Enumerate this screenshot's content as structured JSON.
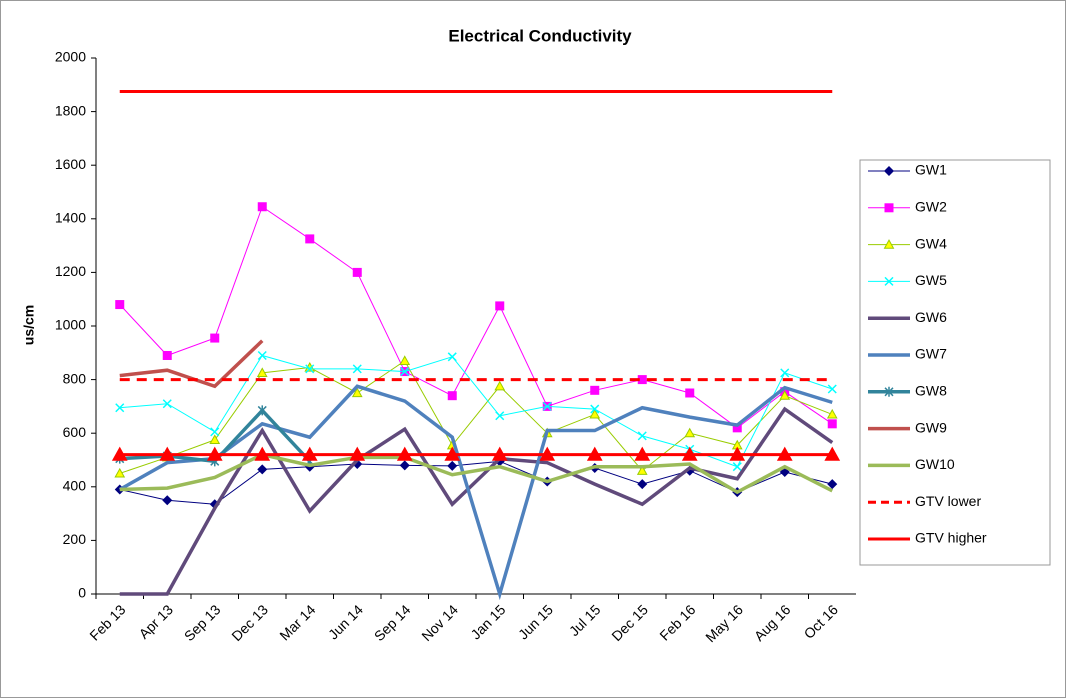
{
  "chart_data": {
    "type": "line",
    "title": "Electrical Conductivity",
    "y_label": "us/cm",
    "categories": [
      "Feb 13",
      "Apr 13",
      "Sep 13",
      "Dec 13",
      "Mar 14",
      "Jun 14",
      "Sep 14",
      "Nov 14",
      "Jan 15",
      "Jun 15",
      "Jul 15",
      "Dec 15",
      "Feb 16",
      "May 16",
      "Aug 16",
      "Oct 16"
    ],
    "ylim": [
      0,
      2000
    ],
    "yticks": [
      0,
      200,
      400,
      600,
      800,
      1000,
      1200,
      1400,
      1600,
      1800,
      2000
    ],
    "legend": "right",
    "series": [
      {
        "name": "GW1",
        "color": "#000080",
        "marker": "diamond",
        "line_width": 1,
        "values": [
          390,
          350,
          335,
          465,
          475,
          485,
          480,
          478,
          495,
          420,
          470,
          410,
          460,
          380,
          455,
          410
        ]
      },
      {
        "name": "GW2",
        "color": "#ff00ff",
        "marker": "square",
        "line_width": 1,
        "values": [
          1080,
          890,
          955,
          1445,
          1325,
          1200,
          830,
          740,
          1075,
          700,
          760,
          800,
          750,
          620,
          755,
          635
        ]
      },
      {
        "name": "GW4",
        "color": "#99cc00",
        "marker": "triangle",
        "marker_fill": "#ffff00",
        "line_width": 1,
        "values": [
          450,
          510,
          575,
          825,
          845,
          750,
          870,
          555,
          775,
          600,
          670,
          460,
          600,
          555,
          740,
          670
        ]
      },
      {
        "name": "GW5",
        "color": "#00ffff",
        "marker": "x",
        "line_width": 1,
        "values": [
          695,
          710,
          605,
          890,
          840,
          840,
          830,
          885,
          665,
          700,
          690,
          590,
          540,
          475,
          825,
          765
        ]
      },
      {
        "name": "GW6",
        "color": "#604a7b",
        "marker": "none",
        "line_width": 3.5,
        "values": [
          0,
          0,
          320,
          610,
          310,
          500,
          615,
          335,
          505,
          490,
          410,
          335,
          470,
          430,
          690,
          565
        ]
      },
      {
        "name": "GW7",
        "color": "#4f81bd",
        "marker": "none",
        "line_width": 3.5,
        "values": [
          390,
          490,
          505,
          635,
          585,
          775,
          720,
          585,
          0,
          610,
          610,
          695,
          660,
          630,
          770,
          715
        ]
      },
      {
        "name": "GW8",
        "color": "#31849b",
        "marker": "star",
        "line_width": 3.5,
        "values": [
          505,
          515,
          495,
          685,
          495,
          null,
          null,
          null,
          null,
          null,
          null,
          null,
          null,
          null,
          null,
          null
        ]
      },
      {
        "name": "GW9",
        "color": "#c0504d",
        "marker": "none",
        "line_width": 3.5,
        "values": [
          815,
          835,
          775,
          945,
          null,
          null,
          null,
          null,
          null,
          null,
          null,
          null,
          null,
          null,
          null,
          null
        ]
      },
      {
        "name": "GW10",
        "color": "#9bbb59",
        "marker": "none",
        "line_width": 3.5,
        "values": [
          390,
          395,
          435,
          520,
          480,
          510,
          510,
          445,
          475,
          420,
          475,
          475,
          485,
          380,
          475,
          385
        ]
      },
      {
        "name": "GTV lower",
        "color": "#ff0000",
        "marker": "none",
        "dash": true,
        "line_width": 3,
        "values": [
          800,
          800,
          800,
          800,
          800,
          800,
          800,
          800,
          800,
          800,
          800,
          800,
          800,
          800,
          800,
          800
        ]
      },
      {
        "name": "GTV higher",
        "color": "#ff0000",
        "marker": "none",
        "line_width": 3,
        "values": [
          1875,
          1875,
          1875,
          1875,
          1875,
          1875,
          1875,
          1875,
          1875,
          1875,
          1875,
          1875,
          1875,
          1875,
          1875,
          1875
        ]
      },
      {
        "color": "#ff0000",
        "marker": "triangle",
        "marker_fill": "#ff0000",
        "line_width": 3,
        "values": [
          520,
          520,
          520,
          520,
          520,
          520,
          520,
          520,
          520,
          520,
          520,
          520,
          520,
          520,
          520,
          520
        ]
      }
    ]
  }
}
